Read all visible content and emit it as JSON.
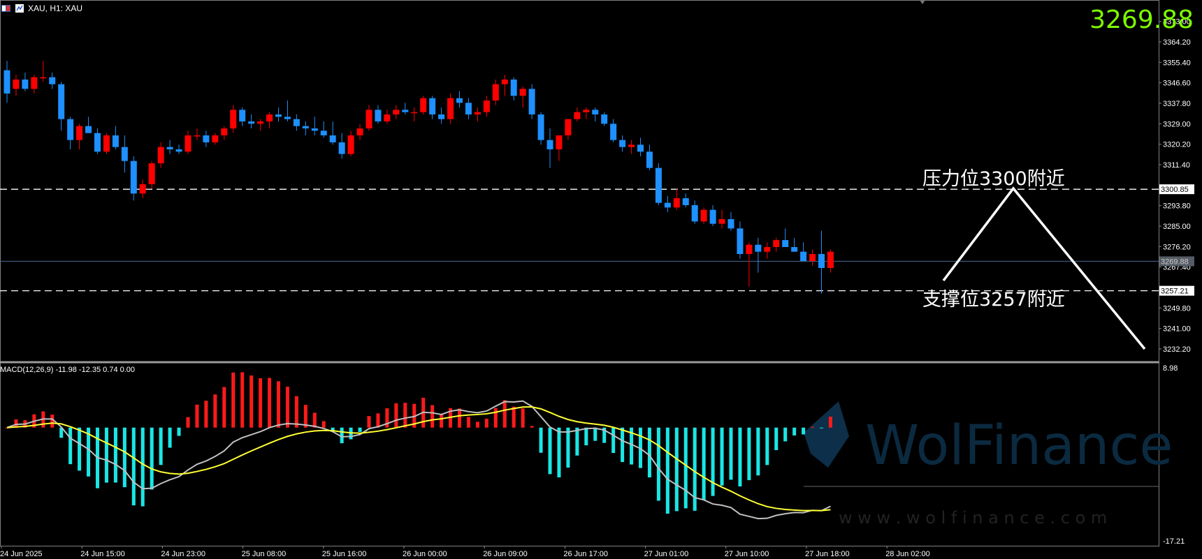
{
  "header": {
    "symbol_label": "XAU, H1:  XAU",
    "current_price_big": "3269.88"
  },
  "annotations": {
    "resistance": "压力位3300附近",
    "support": "支撑位3257附近"
  },
  "colors": {
    "bull": "#ff0000",
    "bear": "#1e90ff",
    "price_text": "#7CFC00",
    "macd_hist_neg": "#19e6e6",
    "macd_hist_pos": "#ff1a1a",
    "macd_main": "#c0c0c0",
    "macd_signal": "#ffff33",
    "watermark": "#0b2a40"
  },
  "price_axis": {
    "ticks": [
      "3373.00",
      "3364.20",
      "3355.40",
      "3346.60",
      "3337.80",
      "3329.00",
      "3320.20",
      "3311.40",
      "3300.85",
      "3293.80",
      "3285.00",
      "3276.20",
      "3269.88",
      "3267.40",
      "3257.21",
      "3249.80",
      "3241.00",
      "3232.20"
    ],
    "resistance_tag": "3300.85",
    "current_tag": "3269.88",
    "support_tag": "3257.21"
  },
  "macd": {
    "title": "MACD(12,26,9) -11.98 -12.35 0.74 0.00",
    "axis_top": "8.98",
    "axis_bottom": "-17.21"
  },
  "time_axis": [
    "24 Jun 2025",
    "24 Jun 15:00",
    "24 Jun 23:00",
    "25 Jun 08:00",
    "25 Jun 16:00",
    "26 Jun 00:00",
    "26 Jun 09:00",
    "26 Jun 17:00",
    "27 Jun 01:00",
    "27 Jun 10:00",
    "27 Jun 18:00",
    "28 Jun 02:00"
  ],
  "watermark": {
    "main": "WolFinance",
    "sub": "w w w . w o l f i n a n c e . c o m"
  },
  "chart_data": {
    "type": "candlestick",
    "symbol": "XAU",
    "timeframe": "H1",
    "ylim": [
      3228,
      3378
    ],
    "levels": {
      "resistance": 3300.85,
      "current": 3269.88,
      "support": 3257.21
    },
    "candles": [
      [
        3352,
        3356,
        3338,
        3342
      ],
      [
        3344,
        3350,
        3341,
        3348
      ],
      [
        3348,
        3351,
        3343,
        3344
      ],
      [
        3344,
        3350,
        3342,
        3349
      ],
      [
        3349,
        3356,
        3347,
        3349
      ],
      [
        3349,
        3351,
        3344,
        3346
      ],
      [
        3346,
        3347,
        3326,
        3331
      ],
      [
        3331,
        3332,
        3318,
        3322
      ],
      [
        3322,
        3329,
        3318,
        3328
      ],
      [
        3328,
        3332,
        3325,
        3325
      ],
      [
        3325,
        3327,
        3316,
        3317
      ],
      [
        3317,
        3325,
        3316,
        3324
      ],
      [
        3324,
        3328,
        3318,
        3319
      ],
      [
        3319,
        3324,
        3308,
        3313
      ],
      [
        3313,
        3315,
        3296,
        3299
      ],
      [
        3299,
        3305,
        3297,
        3303
      ],
      [
        3303,
        3313,
        3301,
        3312
      ],
      [
        3312,
        3321,
        3310,
        3319
      ],
      [
        3319,
        3322,
        3316,
        3318
      ],
      [
        3318,
        3320,
        3316,
        3317
      ],
      [
        3317,
        3326,
        3316,
        3324
      ],
      [
        3324,
        3327,
        3322,
        3324
      ],
      [
        3324,
        3326,
        3319,
        3321
      ],
      [
        3321,
        3325,
        3320,
        3324
      ],
      [
        3324,
        3328,
        3322,
        3327
      ],
      [
        3327,
        3337,
        3325,
        3335
      ],
      [
        3335,
        3336,
        3328,
        3330
      ],
      [
        3330,
        3333,
        3327,
        3329
      ],
      [
        3329,
        3331,
        3326,
        3330
      ],
      [
        3330,
        3334,
        3327,
        3333
      ],
      [
        3333,
        3336,
        3330,
        3332
      ],
      [
        3332,
        3339,
        3330,
        3331
      ],
      [
        3331,
        3333,
        3326,
        3328
      ],
      [
        3328,
        3330,
        3324,
        3327
      ],
      [
        3327,
        3332,
        3324,
        3326
      ],
      [
        3326,
        3330,
        3323,
        3324
      ],
      [
        3324,
        3330,
        3320,
        3321
      ],
      [
        3321,
        3325,
        3314,
        3316
      ],
      [
        3316,
        3326,
        3315,
        3324
      ],
      [
        3324,
        3329,
        3322,
        3327
      ],
      [
        3327,
        3337,
        3326,
        3335
      ],
      [
        3335,
        3337,
        3329,
        3330
      ],
      [
        3330,
        3335,
        3329,
        3333
      ],
      [
        3333,
        3337,
        3331,
        3335
      ],
      [
        3335,
        3338,
        3333,
        3334
      ],
      [
        3334,
        3336,
        3330,
        3334
      ],
      [
        3334,
        3341,
        3333,
        3340
      ],
      [
        3340,
        3341,
        3331,
        3333
      ],
      [
        3333,
        3336,
        3329,
        3331
      ],
      [
        3331,
        3342,
        3329,
        3340
      ],
      [
        3340,
        3343,
        3336,
        3338
      ],
      [
        3338,
        3340,
        3331,
        3333
      ],
      [
        3333,
        3336,
        3330,
        3334
      ],
      [
        3334,
        3341,
        3332,
        3339
      ],
      [
        3339,
        3348,
        3337,
        3346
      ],
      [
        3346,
        3350,
        3341,
        3348
      ],
      [
        3348,
        3349,
        3339,
        3341
      ],
      [
        3341,
        3345,
        3336,
        3344
      ],
      [
        3344,
        3346,
        3331,
        3333
      ],
      [
        3333,
        3334,
        3320,
        3322
      ],
      [
        3322,
        3327,
        3310,
        3318
      ],
      [
        3318,
        3324,
        3313,
        3324
      ],
      [
        3324,
        3331,
        3322,
        3331
      ],
      [
        3331,
        3336,
        3330,
        3334
      ],
      [
        3334,
        3336,
        3331,
        3335
      ],
      [
        3335,
        3336,
        3330,
        3333
      ],
      [
        3333,
        3334,
        3328,
        3329
      ],
      [
        3329,
        3331,
        3321,
        3322
      ],
      [
        3322,
        3324,
        3317,
        3319
      ],
      [
        3319,
        3322,
        3316,
        3320
      ],
      [
        3320,
        3323,
        3315,
        3317
      ],
      [
        3317,
        3320,
        3309,
        3310
      ],
      [
        3310,
        3312,
        3294,
        3295
      ],
      [
        3295,
        3298,
        3291,
        3293
      ],
      [
        3293,
        3301,
        3292,
        3297
      ],
      [
        3297,
        3299,
        3293,
        3294
      ],
      [
        3294,
        3296,
        3286,
        3287
      ],
      [
        3287,
        3293,
        3286,
        3292
      ],
      [
        3292,
        3294,
        3285,
        3286
      ],
      [
        3286,
        3292,
        3284,
        3288
      ],
      [
        3288,
        3291,
        3283,
        3284
      ],
      [
        3284,
        3287,
        3271,
        3273
      ],
      [
        3273,
        3278,
        3259,
        3277
      ],
      [
        3277,
        3280,
        3265,
        3274
      ],
      [
        3274,
        3278,
        3271,
        3276
      ],
      [
        3276,
        3280,
        3274,
        3279
      ],
      [
        3279,
        3284,
        3276,
        3276
      ],
      [
        3276,
        3280,
        3275,
        3274
      ],
      [
        3274,
        3278,
        3270,
        3270
      ],
      [
        3270,
        3275,
        3268,
        3273
      ],
      [
        3273,
        3283,
        3256,
        3267
      ],
      [
        3267,
        3275,
        3265,
        3274
      ]
    ]
  }
}
